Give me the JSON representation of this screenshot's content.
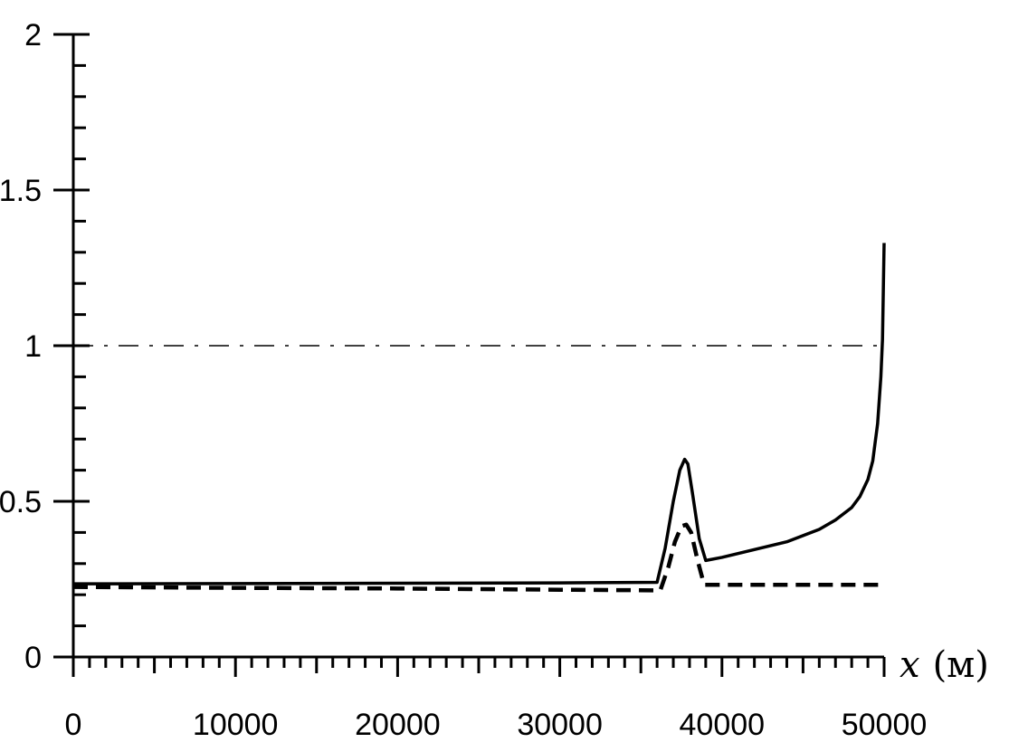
{
  "chart_data": {
    "type": "line",
    "title": "",
    "xlabel": "x",
    "xlabel_unit": "(м)",
    "ylabel": "",
    "xlim": [
      0,
      50000
    ],
    "ylim": [
      0,
      2
    ],
    "x_ticks": [
      0,
      10000,
      20000,
      30000,
      40000,
      50000
    ],
    "x_tick_labels": [
      "0",
      "10000",
      "20000",
      "30000",
      "40000",
      "50000"
    ],
    "y_ticks": [
      0,
      0.5,
      1,
      1.5,
      2
    ],
    "y_tick_labels": [
      "0",
      "0.5",
      "1",
      "1.5",
      "2"
    ],
    "x_minor_step": 1000,
    "y_minor_step": 0.1,
    "grid": false,
    "series": [
      {
        "style": "solid",
        "color": "#000000",
        "x": [
          0,
          10000,
          20000,
          30000,
          36000,
          36500,
          37000,
          37400,
          37700,
          37900,
          38200,
          38600,
          39000,
          40000,
          42000,
          44000,
          46000,
          47000,
          48000,
          48500,
          49000,
          49300,
          49600,
          49800,
          49900,
          50000
        ],
        "y": [
          0.235,
          0.236,
          0.237,
          0.238,
          0.24,
          0.35,
          0.5,
          0.6,
          0.635,
          0.62,
          0.52,
          0.38,
          0.31,
          0.32,
          0.345,
          0.37,
          0.41,
          0.44,
          0.48,
          0.515,
          0.57,
          0.63,
          0.75,
          0.9,
          1.02,
          1.33
        ]
      },
      {
        "style": "dashed",
        "color": "#000000",
        "x": [
          0,
          10000,
          20000,
          30000,
          36200,
          36700,
          37100,
          37500,
          37800,
          38100,
          38500,
          38900,
          40000,
          45000,
          50000
        ],
        "y": [
          0.225,
          0.222,
          0.22,
          0.216,
          0.214,
          0.29,
          0.37,
          0.42,
          0.425,
          0.4,
          0.31,
          0.232,
          0.232,
          0.232,
          0.232
        ]
      },
      {
        "style": "dashdot",
        "color": "#000000",
        "x": [
          0,
          50000
        ],
        "y": [
          1,
          1
        ]
      }
    ]
  }
}
